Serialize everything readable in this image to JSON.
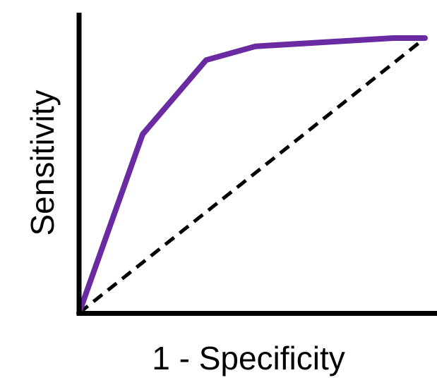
{
  "chart_data": {
    "type": "line",
    "title": "",
    "xlabel": "1 - Specificity",
    "ylabel": "Sensitivity",
    "xlim": [
      0,
      1
    ],
    "ylim": [
      0,
      1
    ],
    "grid": false,
    "series": [
      {
        "style": "solid",
        "color": "#6a2ba2",
        "x": [
          0,
          0.18,
          0.36,
          0.5,
          0.89,
          0.98
        ],
        "y": [
          0,
          0.65,
          0.92,
          0.97,
          1.0,
          1.0
        ]
      },
      {
        "style": "dashed",
        "color": "#000000",
        "x": [
          0,
          0.98
        ],
        "y": [
          0,
          1.0
        ]
      }
    ]
  }
}
